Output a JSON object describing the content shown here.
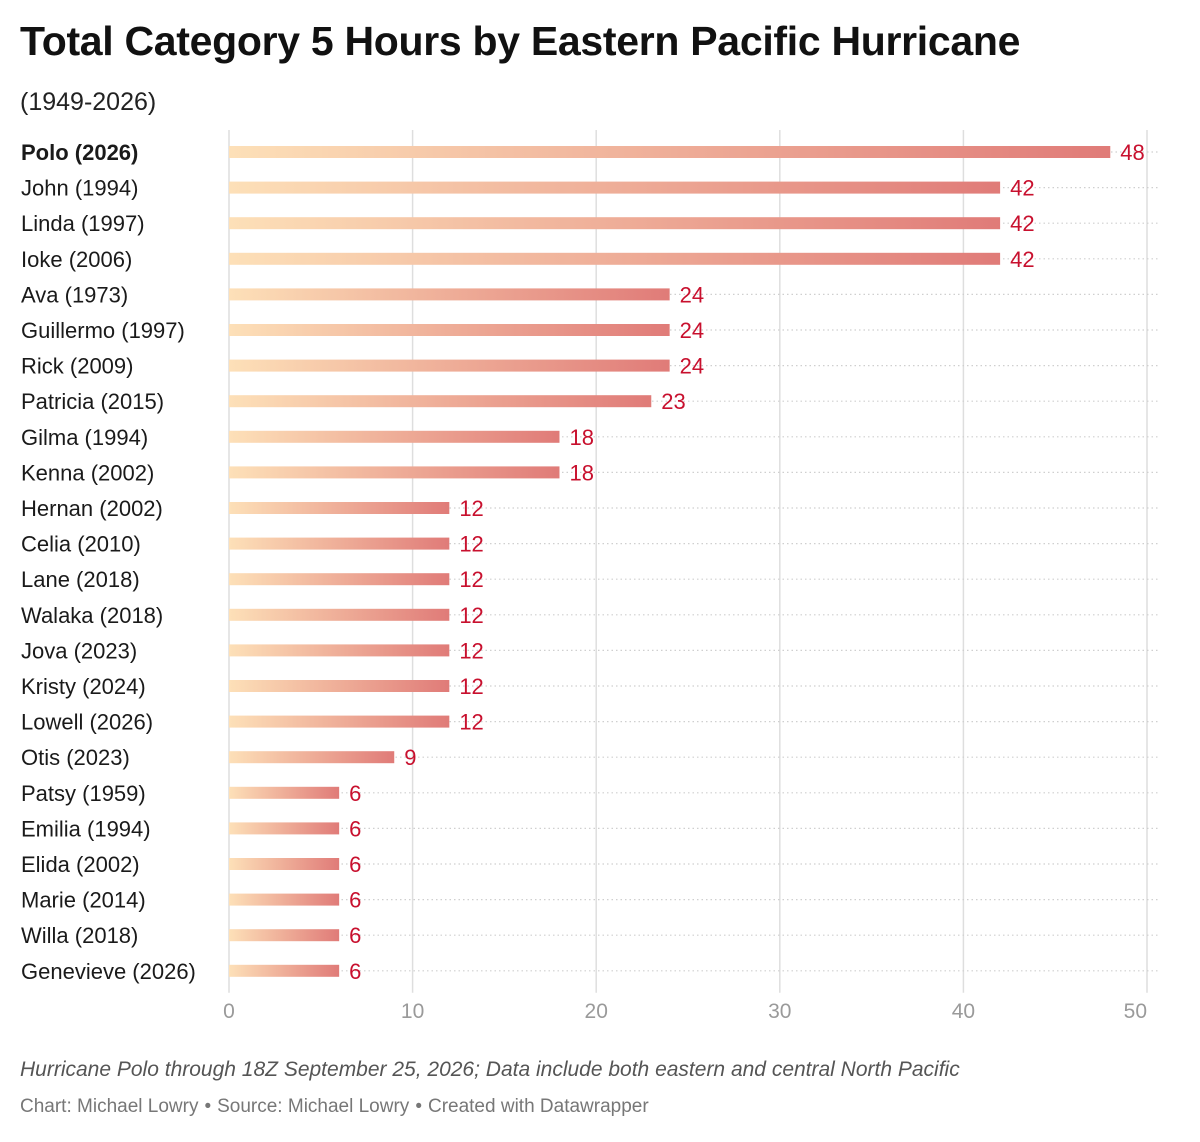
{
  "header": {
    "title": "Total Category 5 Hours by Eastern Pacific Hurricane",
    "subtitle": "(1949-2026)"
  },
  "footer": {
    "notes": "Hurricane Polo through 18Z September 25, 2026; Data include both eastern and central North Pacific",
    "chart_credit": "Chart: Michael Lowry",
    "source": "Source: Michael Lowry",
    "created_with": "Created with Datawrapper",
    "separator": "•"
  },
  "chart_data": {
    "type": "bar",
    "orientation": "horizontal",
    "categories": [
      "Polo (2026)",
      "John (1994)",
      "Linda (1997)",
      "Ioke (2006)",
      "Ava (1973)",
      "Guillermo (1997)",
      "Rick (2009)",
      "Patricia (2015)",
      "Gilma (1994)",
      "Kenna (2002)",
      "Hernan (2002)",
      "Celia (2010)",
      "Lane (2018)",
      "Walaka (2018)",
      "Jova (2023)",
      "Kristy (2024)",
      "Lowell (2026)",
      "Otis (2023)",
      "Patsy (1959)",
      "Emilia (1994)",
      "Elida (2002)",
      "Marie (2014)",
      "Willa (2018)",
      "Genevieve (2026)"
    ],
    "values": [
      48,
      42,
      42,
      42,
      24,
      24,
      24,
      23,
      18,
      18,
      12,
      12,
      12,
      12,
      12,
      12,
      12,
      9,
      6,
      6,
      6,
      6,
      6,
      6
    ],
    "highlighted": [
      "Polo (2026)"
    ],
    "xlim": [
      0,
      50
    ],
    "xticks": [
      0,
      10,
      20,
      30,
      40,
      50
    ],
    "grid": true,
    "colors": {
      "bar_start": "#fde0b8",
      "bar_end": "#e07b78",
      "value_label": "#c8102e",
      "gridline": "#dedede",
      "row_dots": "#cfcfcf",
      "tick_label": "#9a9a9a"
    }
  }
}
